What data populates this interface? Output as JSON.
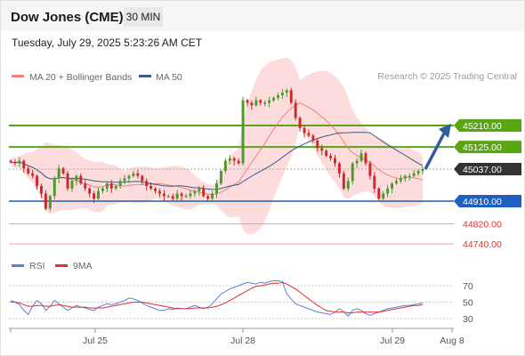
{
  "header": {
    "instrument": "Dow Jones (CME)",
    "timeframe": "30 MIN",
    "datetime": "Tuesday, July 29, 2025 5:23:26 AM CET"
  },
  "copyright": "Research © 2025 Trading Central",
  "colors": {
    "ma20": "#f08080",
    "ma50": "#3a5b8c",
    "band": "#fbd6d6",
    "green_level": "#5aa514",
    "blue_level": "#1f5fbf",
    "red_level": "#f0a0a0",
    "price_badge": "#333333",
    "bull_candle": "#4a9a2a",
    "bear_candle": "#cc2a2a",
    "rsi": "#5b7fd8",
    "rsi_ma": "#e03030",
    "arrow": "#2f5d9e"
  },
  "chart_data": [
    {
      "type": "candlestick",
      "legend": [
        {
          "label": "MA 20 + Bollinger Bands",
          "color": "#f08080"
        },
        {
          "label": "MA 50",
          "color": "#3a5b8c"
        }
      ],
      "ylim": [
        44700,
        45400
      ],
      "xaxis": {
        "ticks": [
          "Jul 25",
          "Jul 28",
          "Jul 29",
          "Aug 8"
        ],
        "bar_index_range": [
          0,
          120
        ]
      },
      "levels": [
        {
          "value": 45210,
          "label": "45210.00",
          "type": "resistance"
        },
        {
          "value": 45125,
          "label": "45125.00",
          "type": "resistance"
        },
        {
          "value": 45037,
          "label": "45037.00",
          "type": "last_price"
        },
        {
          "value": 44910,
          "label": "44910.00",
          "type": "pivot"
        },
        {
          "value": 44820,
          "label": "44820.00",
          "type": "support"
        },
        {
          "value": 44740,
          "label": "44740.00",
          "type": "support"
        }
      ],
      "candles_close": [
        45065,
        45060,
        45070,
        45040,
        45020,
        45010,
        44970,
        44940,
        44880,
        44930,
        45000,
        45040,
        45020,
        44960,
        44990,
        45010,
        44980,
        44960,
        44940,
        44920,
        44950,
        44960,
        44980,
        44960,
        44970,
        44990,
        45000,
        45010,
        45020,
        45010,
        44990,
        44970,
        44960,
        44950,
        44940,
        44930,
        44930,
        44920,
        44940,
        44930,
        44930,
        44940,
        44950,
        44960,
        44930,
        44920,
        44940,
        44980,
        45030,
        45070,
        45080,
        45070,
        45060,
        45310,
        45300,
        45290,
        45310,
        45300,
        45300,
        45310,
        45320,
        45330,
        45340,
        45350,
        45300,
        45240,
        45200,
        45180,
        45170,
        45150,
        45120,
        45110,
        45090,
        45080,
        45060,
        45020,
        44960,
        44990,
        45060,
        45070,
        45100,
        45060,
        45010,
        44960,
        44920,
        44940,
        44960,
        44980,
        44990,
        45000,
        45010,
        45010,
        45020,
        45030,
        45037
      ],
      "highs_lows_note": "approximate OHLC derived from close path",
      "projection": {
        "from": 45037,
        "to": 45210,
        "direction": "up"
      }
    },
    {
      "type": "line",
      "legend": [
        {
          "label": "RSI",
          "color": "#5b7fd8"
        },
        {
          "label": "9MA",
          "color": "#e03030"
        }
      ],
      "ylim": [
        20,
        80
      ],
      "yticks": [
        70,
        50,
        30
      ],
      "series": [
        {
          "name": "RSI",
          "values": [
            52,
            50,
            47,
            40,
            35,
            45,
            52,
            48,
            40,
            45,
            52,
            48,
            44,
            40,
            43,
            46,
            44,
            43,
            41,
            40,
            44,
            46,
            48,
            47,
            48,
            50,
            52,
            55,
            54,
            52,
            49,
            46,
            44,
            42,
            40,
            40,
            42,
            41,
            43,
            42,
            42,
            44,
            46,
            44,
            42,
            44,
            48,
            54,
            60,
            63,
            66,
            68,
            70,
            72,
            74,
            73,
            72,
            74,
            73,
            75,
            76,
            76,
            75,
            60,
            54,
            48,
            46,
            44,
            42,
            40,
            38,
            37,
            36,
            35,
            38,
            42,
            38,
            33,
            40,
            42,
            40,
            36,
            34,
            36,
            38,
            40,
            42,
            43,
            44,
            45,
            46,
            46,
            47,
            48,
            49
          ]
        },
        {
          "name": "9MA",
          "values": [
            50,
            50,
            49,
            47,
            45,
            45,
            46,
            46,
            45,
            45,
            46,
            47,
            46,
            45,
            44,
            44,
            44,
            44,
            43,
            43,
            43,
            43,
            44,
            45,
            46,
            47,
            48,
            49,
            50,
            50,
            50,
            49,
            48,
            47,
            46,
            45,
            44,
            43,
            42,
            42,
            42,
            42,
            43,
            43,
            43,
            43,
            44,
            45,
            47,
            49,
            52,
            55,
            58,
            61,
            64,
            67,
            69,
            70,
            71,
            72,
            73,
            73,
            74,
            72,
            69,
            66,
            62,
            58,
            54,
            50,
            46,
            43,
            40,
            39,
            38,
            38,
            38,
            37,
            37,
            38,
            38,
            38,
            38,
            38,
            38,
            39,
            40,
            41,
            42,
            43,
            44,
            45,
            46,
            46,
            47
          ]
        }
      ]
    }
  ]
}
